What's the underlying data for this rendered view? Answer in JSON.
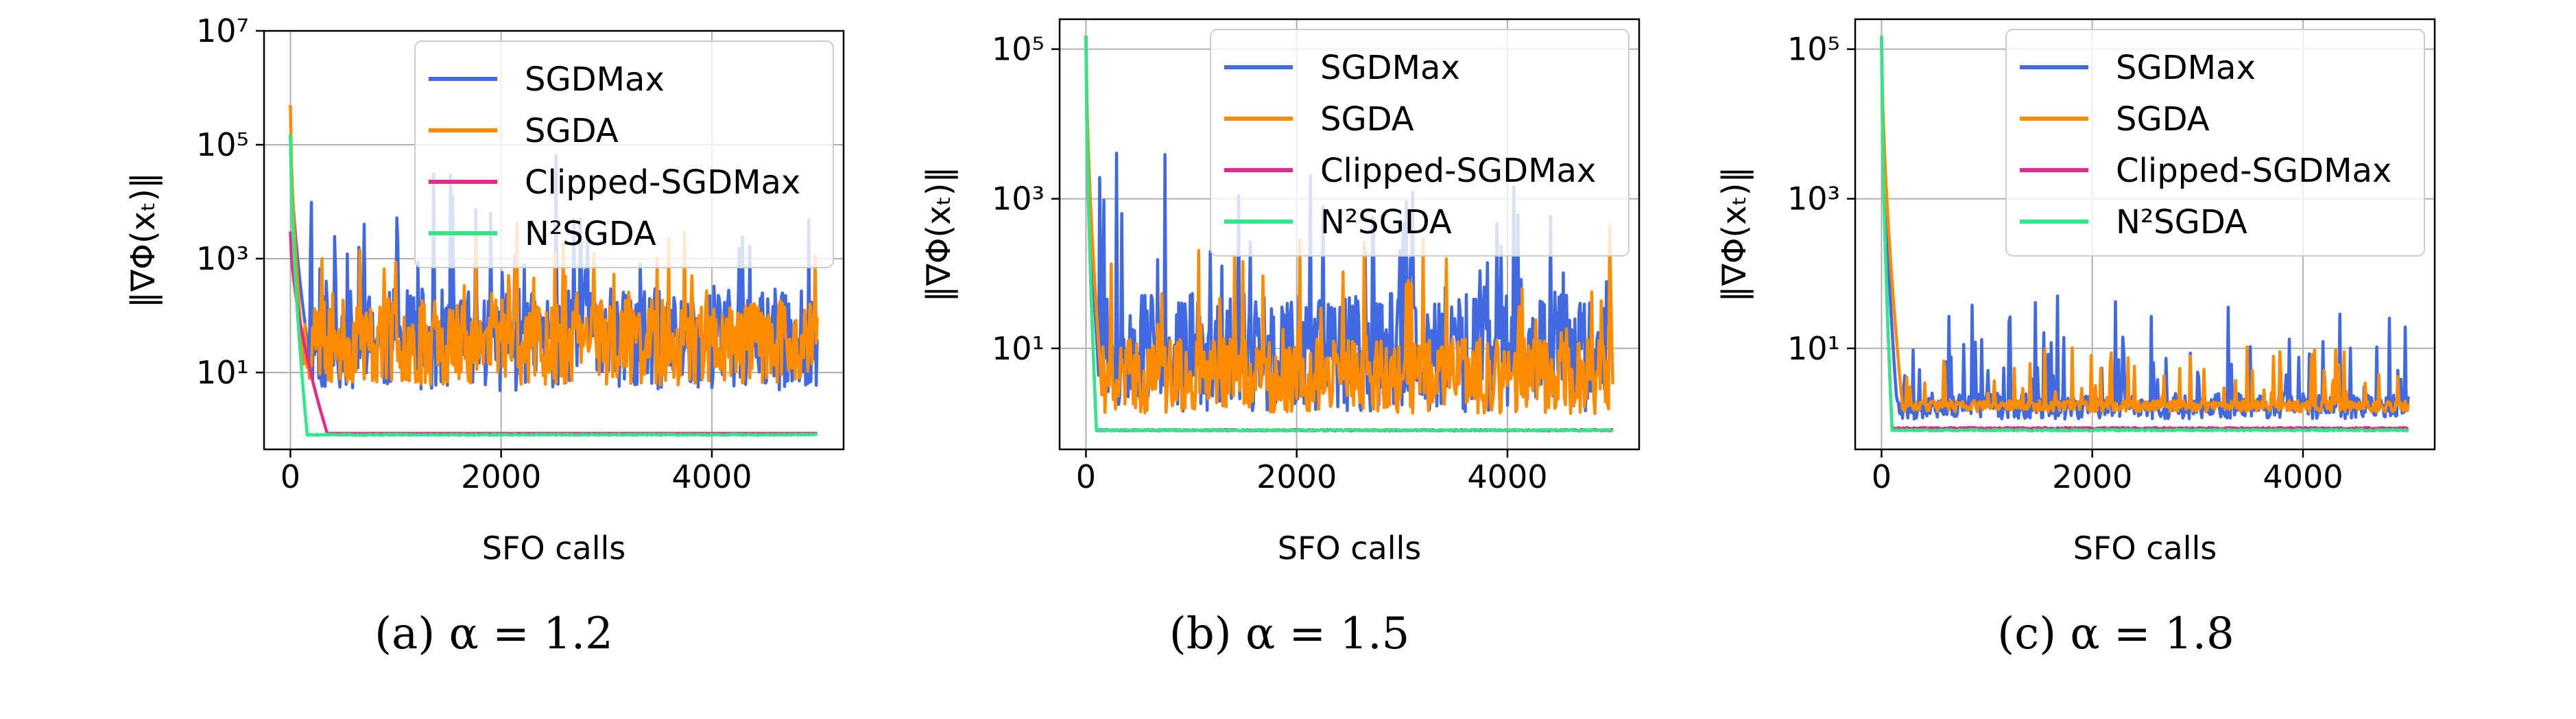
{
  "figure": {
    "panels": [
      {
        "caption": "(a) α = 1.2",
        "chart_data": {
          "type": "line",
          "xlabel": "SFO calls",
          "ylabel": "‖∇Φ(xₜ)‖",
          "yscale": "log",
          "xlim": [
            -250,
            5250
          ],
          "ylim_log10": [
            -0.35,
            7.0
          ],
          "xticks": [
            0,
            2000,
            4000
          ],
          "xtick_labels": [
            "0",
            "2000",
            "4000"
          ],
          "yticks_log10": [
            1,
            3,
            5,
            7
          ],
          "ytick_labels": [
            "10¹",
            "10³",
            "10⁵",
            "10⁷"
          ],
          "grid": true,
          "legend": "top-right",
          "series": [
            {
              "name": "SGDMax",
              "color": "#4169e1",
              "start": 150000,
              "floor": 20,
              "spread": 1.8,
              "spikes": 2.5,
              "seed": 11,
              "n": 500,
              "decay_to": 180
            },
            {
              "name": "SGDA",
              "color": "#ff8c00",
              "start": 500000,
              "floor": 20,
              "spread": 1.5,
              "spikes": 1.5,
              "seed": 23,
              "n": 500,
              "decay_to": 120
            },
            {
              "name": "Clipped-SGDMax",
              "color": "#e7298a",
              "start": 3000,
              "floor": 0.85,
              "spread": 0,
              "spikes": 0,
              "seed": 3,
              "n": 500,
              "decay_to": 350
            },
            {
              "name": "N²SGDA",
              "color": "#2ee88a",
              "start": 150000,
              "floor": 0.8,
              "spread": 0.02,
              "spikes": 0,
              "seed": 5,
              "n": 500,
              "decay_to": 160
            }
          ]
        }
      },
      {
        "caption": "(b) α = 1.5",
        "chart_data": {
          "type": "line",
          "xlabel": "SFO calls",
          "ylabel": "‖∇Φ(xₜ)‖",
          "yscale": "log",
          "xlim": [
            -250,
            5250
          ],
          "ylim_log10": [
            -0.35,
            5.4
          ],
          "xticks": [
            0,
            2000,
            4000
          ],
          "xtick_labels": [
            "0",
            "2000",
            "4000"
          ],
          "yticks_log10": [
            1,
            3,
            5
          ],
          "ytick_labels": [
            "10¹",
            "10³",
            "10⁵"
          ],
          "grid": true,
          "legend": "top-right",
          "series": [
            {
              "name": "SGDMax",
              "color": "#4169e1",
              "start": 150000,
              "floor": 5,
              "spread": 1.6,
              "spikes": 2.3,
              "seed": 31,
              "n": 500,
              "decay_to": 120
            },
            {
              "name": "SGDA",
              "color": "#ff8c00",
              "start": 150000,
              "floor": 3,
              "spread": 1.0,
              "spikes": 1.6,
              "seed": 41,
              "n": 500,
              "decay_to": 150
            },
            {
              "name": "Clipped-SGDMax",
              "color": "#e7298a",
              "start": 150000,
              "floor": 0.8,
              "spread": 0.02,
              "spikes": 0,
              "seed": 7,
              "n": 500,
              "decay_to": 100
            },
            {
              "name": "N²SGDA",
              "color": "#2ee88a",
              "start": 150000,
              "floor": 0.8,
              "spread": 0.02,
              "spikes": 0,
              "seed": 9,
              "n": 500,
              "decay_to": 100
            }
          ]
        }
      },
      {
        "caption": "(c) α = 1.8",
        "chart_data": {
          "type": "line",
          "xlabel": "SFO calls",
          "ylabel": "‖∇Φ(xₜ)‖",
          "yscale": "log",
          "xlim": [
            -250,
            5250
          ],
          "ylim_log10": [
            -0.35,
            5.4
          ],
          "xticks": [
            0,
            2000,
            4000
          ],
          "xtick_labels": [
            "0",
            "2000",
            "4000"
          ],
          "yticks_log10": [
            1,
            3,
            5
          ],
          "ytick_labels": [
            "10¹",
            "10³",
            "10⁵"
          ],
          "grid": true,
          "legend": "top-right",
          "series": [
            {
              "name": "SGDMax",
              "color": "#4169e1",
              "start": 150000,
              "floor": 1.5,
              "spread": 0.35,
              "spikes": 1.4,
              "seed": 53,
              "n": 500,
              "decay_to": 150
            },
            {
              "name": "SGDA",
              "color": "#ff8c00",
              "start": 150000,
              "floor": 1.6,
              "spread": 0.15,
              "spikes": 0.8,
              "seed": 61,
              "n": 500,
              "decay_to": 200
            },
            {
              "name": "Clipped-SGDMax",
              "color": "#e7298a",
              "start": 150000,
              "floor": 0.85,
              "spread": 0.02,
              "spikes": 0,
              "seed": 13,
              "n": 500,
              "decay_to": 100
            },
            {
              "name": "N²SGDA",
              "color": "#2ee88a",
              "start": 150000,
              "floor": 0.8,
              "spread": 0.02,
              "spikes": 0,
              "seed": 17,
              "n": 500,
              "decay_to": 100
            }
          ]
        }
      }
    ]
  }
}
